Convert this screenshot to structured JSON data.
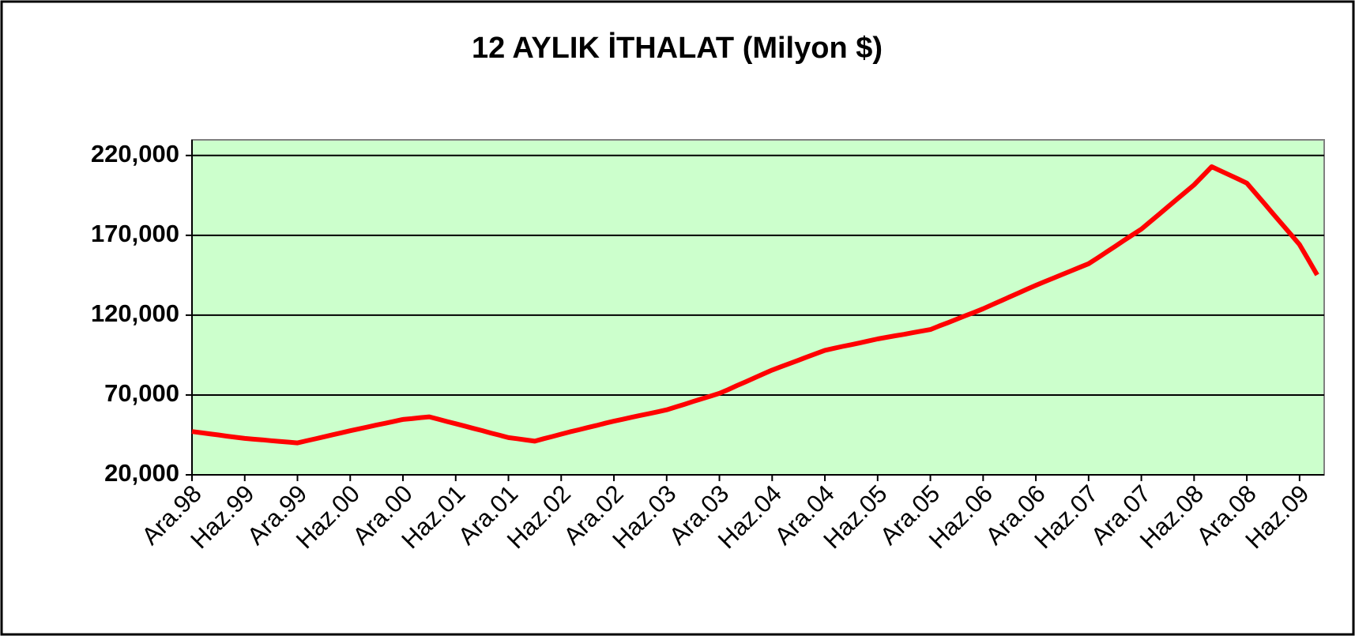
{
  "chart_data": {
    "type": "line",
    "title": "12 AYLIK İTHALAT (Milyon $)",
    "categories": [
      "Ara.98",
      null,
      null,
      null,
      null,
      null,
      "Haz.99",
      null,
      null,
      null,
      null,
      null,
      "Ara.99",
      null,
      null,
      null,
      null,
      null,
      "Haz.00",
      null,
      null,
      null,
      null,
      null,
      "Ara.00",
      null,
      null,
      null,
      null,
      null,
      "Haz.01",
      null,
      null,
      null,
      null,
      null,
      "Ara.01",
      null,
      null,
      null,
      null,
      null,
      "Haz.02",
      null,
      null,
      null,
      null,
      null,
      "Ara.02",
      null,
      null,
      null,
      null,
      null,
      "Haz.03",
      null,
      null,
      null,
      null,
      null,
      "Ara.03",
      null,
      null,
      null,
      null,
      null,
      "Haz.04",
      null,
      null,
      null,
      null,
      null,
      "Ara.04",
      null,
      null,
      null,
      null,
      null,
      "Haz.05",
      null,
      null,
      null,
      null,
      null,
      "Ara.05",
      null,
      null,
      null,
      null,
      null,
      "Haz.06",
      null,
      null,
      null,
      null,
      null,
      "Ara.06",
      null,
      null,
      null,
      null,
      null,
      "Haz.07",
      null,
      null,
      null,
      null,
      null,
      "Ara.07",
      null,
      null,
      null,
      null,
      null,
      "Haz.08",
      null,
      null,
      null,
      null,
      null,
      "Ara.08",
      null,
      null,
      null,
      null,
      null,
      "Haz.09",
      null,
      null
    ],
    "series": [
      {
        "name": "12 aylık ithalat",
        "color": "#ff0000",
        "values": [
          47100,
          46400,
          45700,
          45000,
          44200,
          43500,
          42800,
          42300,
          41900,
          41400,
          40900,
          40500,
          40000,
          41300,
          42500,
          43800,
          45100,
          46300,
          47600,
          48800,
          50000,
          51200,
          52300,
          53500,
          54700,
          55200,
          55800,
          56300,
          54900,
          53400,
          52000,
          50600,
          49100,
          47700,
          46200,
          44800,
          43300,
          42600,
          41800,
          41100,
          42600,
          44000,
          45500,
          46900,
          48200,
          49600,
          50900,
          52300,
          53600,
          54800,
          56000,
          57200,
          58300,
          59500,
          60700,
          62400,
          64100,
          65900,
          67600,
          69300,
          71000,
          73400,
          75900,
          78300,
          80700,
          83200,
          85600,
          87700,
          89700,
          91800,
          93900,
          95900,
          98000,
          99200,
          100400,
          101500,
          102700,
          103900,
          105100,
          106100,
          107100,
          108000,
          109000,
          110000,
          111000,
          113200,
          115300,
          117500,
          119700,
          121800,
          124000,
          126500,
          128900,
          131400,
          133800,
          136300,
          138700,
          141000,
          143200,
          145500,
          147700,
          150000,
          152200,
          155800,
          159400,
          163000,
          166700,
          170300,
          173900,
          178500,
          183100,
          187800,
          192400,
          197000,
          201600,
          207300,
          213000,
          210400,
          207900,
          205300,
          202700,
          196300,
          189900,
          183400,
          177000,
          170600,
          164200,
          154700,
          145200
        ]
      }
    ],
    "ylim": [
      20000,
      229800
    ],
    "yticks": [
      {
        "value": 20000,
        "label": "20,000"
      },
      {
        "value": 70000,
        "label": "70,000"
      },
      {
        "value": 120000,
        "label": "120,000"
      },
      {
        "value": 170000,
        "label": "170,000"
      },
      {
        "value": 220000,
        "label": "220,000"
      }
    ],
    "grid": true,
    "plot_background": "#ccffcc"
  }
}
